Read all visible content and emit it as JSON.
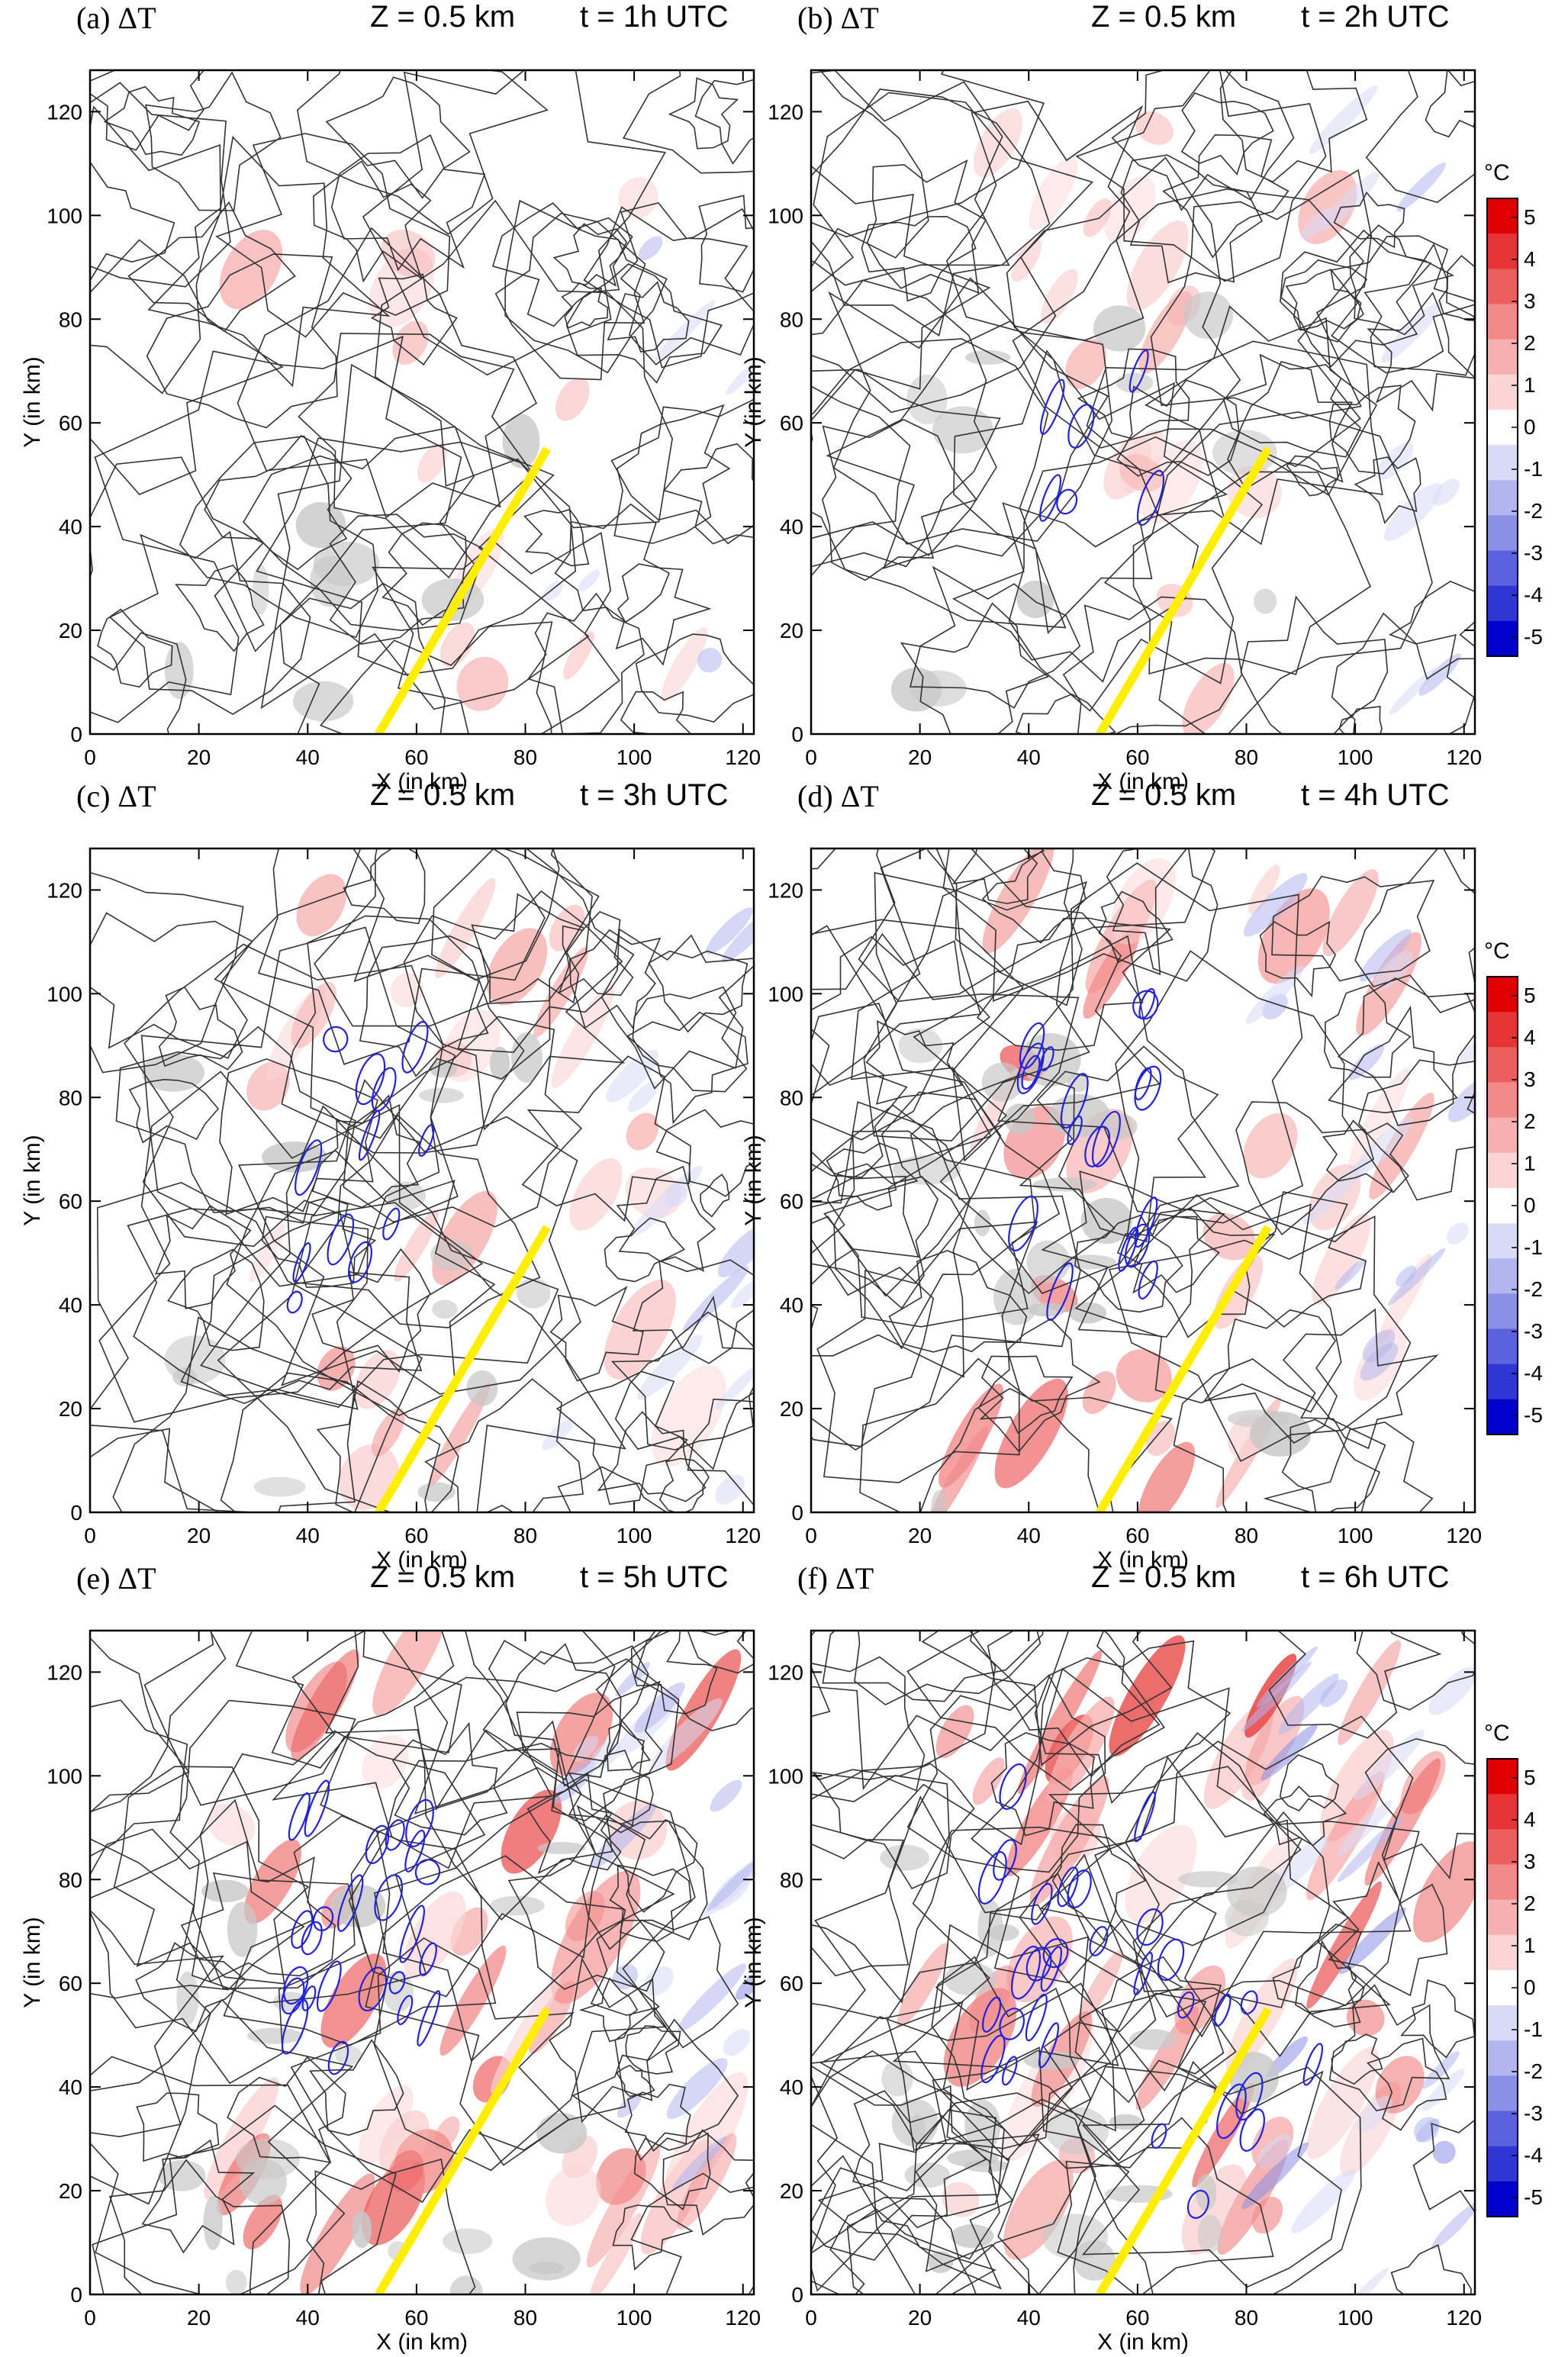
{
  "variable": "ΔT",
  "colors": {
    "pos_scale": [
      "#ffffff",
      "#fbd4d4",
      "#f7b0b0",
      "#f28a8a",
      "#ec5f5f",
      "#e63333",
      "#e00000"
    ],
    "neg_scale": [
      "#ffffff",
      "#d9dbf6",
      "#b2b6ee",
      "#8a90e6",
      "#5c62dd",
      "#2f36d4",
      "#0000cc"
    ],
    "terrain": "#333333",
    "wind": "#2222dd",
    "cloud": "#c8c8c8",
    "line": "#ffee00"
  },
  "chart_data": [
    {
      "type": "heatmap",
      "label": "(a)",
      "title_var": "ΔT",
      "level": "Z = 0.5 km",
      "time": "t = 1h UTC",
      "xlabel": "X (in km)",
      "ylabel": "Y (in km)",
      "xlim": [
        0,
        122
      ],
      "ylim": [
        0,
        128
      ],
      "xticks": [
        "0",
        "20",
        "40",
        "60",
        "80",
        "100",
        "120"
      ],
      "yticks": [
        "0",
        "20",
        "40",
        "60",
        "80",
        "100",
        "120"
      ],
      "line": {
        "x": [
          53,
          84
        ],
        "y": [
          0,
          55
        ]
      }
    },
    {
      "type": "heatmap",
      "label": "(b)",
      "title_var": "ΔT",
      "level": "Z = 0.5 km",
      "time": "t = 2h UTC",
      "xlabel": "X (in km)",
      "ylabel": "Y (in km)",
      "xlim": [
        0,
        122
      ],
      "ylim": [
        0,
        128
      ],
      "xticks": [
        "0",
        "20",
        "40",
        "60",
        "80",
        "100",
        "120"
      ],
      "yticks": [
        "0",
        "20",
        "40",
        "60",
        "80",
        "100",
        "120"
      ],
      "line": {
        "x": [
          53,
          84
        ],
        "y": [
          0,
          55
        ]
      }
    },
    {
      "type": "heatmap",
      "label": "(c)",
      "title_var": "ΔT",
      "level": "Z = 0.5 km",
      "time": "t = 3h UTC",
      "xlabel": "X (in km)",
      "ylabel": "Y (in km)",
      "xlim": [
        0,
        122
      ],
      "ylim": [
        0,
        128
      ],
      "xticks": [
        "0",
        "20",
        "40",
        "60",
        "80",
        "100",
        "120"
      ],
      "yticks": [
        "0",
        "20",
        "40",
        "60",
        "80",
        "100",
        "120"
      ],
      "line": {
        "x": [
          53,
          84
        ],
        "y": [
          0,
          55
        ]
      }
    },
    {
      "type": "heatmap",
      "label": "(d)",
      "title_var": "ΔT",
      "level": "Z = 0.5 km",
      "time": "t = 4h UTC",
      "xlabel": "X (in km)",
      "ylabel": "Y (in km)",
      "xlim": [
        0,
        122
      ],
      "ylim": [
        0,
        128
      ],
      "xticks": [
        "0",
        "20",
        "40",
        "60",
        "80",
        "100",
        "120"
      ],
      "yticks": [
        "0",
        "20",
        "40",
        "60",
        "80",
        "100",
        "120"
      ],
      "line": {
        "x": [
          53,
          84
        ],
        "y": [
          0,
          55
        ]
      }
    },
    {
      "type": "heatmap",
      "label": "(e)",
      "title_var": "ΔT",
      "level": "Z = 0.5 km",
      "time": "t = 5h UTC",
      "xlabel": "X (in km)",
      "ylabel": "Y (in km)",
      "xlim": [
        0,
        122
      ],
      "ylim": [
        0,
        128
      ],
      "xticks": [
        "0",
        "20",
        "40",
        "60",
        "80",
        "100",
        "120"
      ],
      "yticks": [
        "0",
        "20",
        "40",
        "60",
        "80",
        "100",
        "120"
      ],
      "line": {
        "x": [
          53,
          84
        ],
        "y": [
          0,
          55
        ]
      }
    },
    {
      "type": "heatmap",
      "label": "(f)",
      "title_var": "ΔT",
      "level": "Z = 0.5 km",
      "time": "t = 6h UTC",
      "xlabel": "X (in km)",
      "ylabel": "Y (in km)",
      "xlim": [
        0,
        122
      ],
      "ylim": [
        0,
        128
      ],
      "xticks": [
        "0",
        "20",
        "40",
        "60",
        "80",
        "100",
        "120"
      ],
      "yticks": [
        "0",
        "20",
        "40",
        "60",
        "80",
        "100",
        "120"
      ],
      "line": {
        "x": [
          53,
          84
        ],
        "y": [
          0,
          55
        ]
      }
    }
  ],
  "colorbar": {
    "unit": "°C",
    "levels": [
      "5",
      "4",
      "3",
      "2",
      "1",
      "0",
      "-1",
      "-2",
      "-3",
      "-4",
      "-5"
    ],
    "range": [
      -5,
      5
    ]
  }
}
